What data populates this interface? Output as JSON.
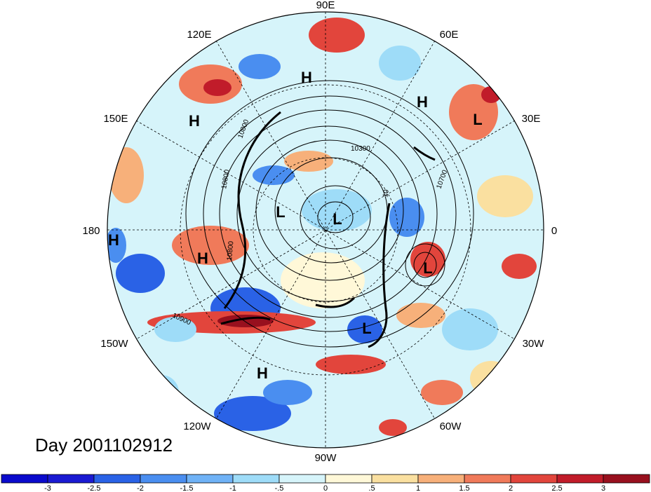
{
  "title": "Day 2001102912",
  "longitude_labels": [
    {
      "text": "90E",
      "lon": 90
    },
    {
      "text": "60E",
      "lon": 60
    },
    {
      "text": "30E",
      "lon": 30
    },
    {
      "text": "0",
      "lon": 0
    },
    {
      "text": "30W",
      "lon": -30
    },
    {
      "text": "60W",
      "lon": -60
    },
    {
      "text": "90W",
      "lon": -90
    },
    {
      "text": "120W",
      "lon": -120
    },
    {
      "text": "150W",
      "lon": -150
    },
    {
      "text": "180",
      "lon": 180
    },
    {
      "text": "150E",
      "lon": 150
    },
    {
      "text": "120E",
      "lon": 120
    }
  ],
  "pressure_systems": [
    {
      "type": "H",
      "name": "high-120e"
    },
    {
      "type": "H",
      "name": "high-150e"
    },
    {
      "type": "H",
      "name": "high-60e"
    },
    {
      "type": "L",
      "name": "low-30e"
    },
    {
      "type": "L",
      "name": "low-central-west"
    },
    {
      "type": "L",
      "name": "low-pole"
    },
    {
      "type": "H",
      "name": "high-180"
    },
    {
      "type": "H",
      "name": "high-165w"
    },
    {
      "type": "L",
      "name": "low-atlantic"
    },
    {
      "type": "L",
      "name": "low-west-atlantic"
    },
    {
      "type": "H",
      "name": "high-pacific"
    }
  ],
  "contour_labels": [
    "10800",
    "10800",
    "10300",
    "10700",
    "10800",
    "10900",
    "10"
  ],
  "colorbar": {
    "ticks": [
      "-3",
      "-2.5",
      "-2",
      "-1.5",
      "-1",
      "-.5",
      "0",
      ".5",
      "1",
      "1.5",
      "2",
      "2.5",
      "3"
    ],
    "colors": [
      "#1a1ad2",
      "#2a62e6",
      "#4a8ef0",
      "#6fb2f6",
      "#9edcf8",
      "#d6f4fa",
      "#fff8d8",
      "#fae0a0",
      "#f7b07a",
      "#f07a5a",
      "#e2453c",
      "#c11c2a",
      "#98101e"
    ]
  }
}
